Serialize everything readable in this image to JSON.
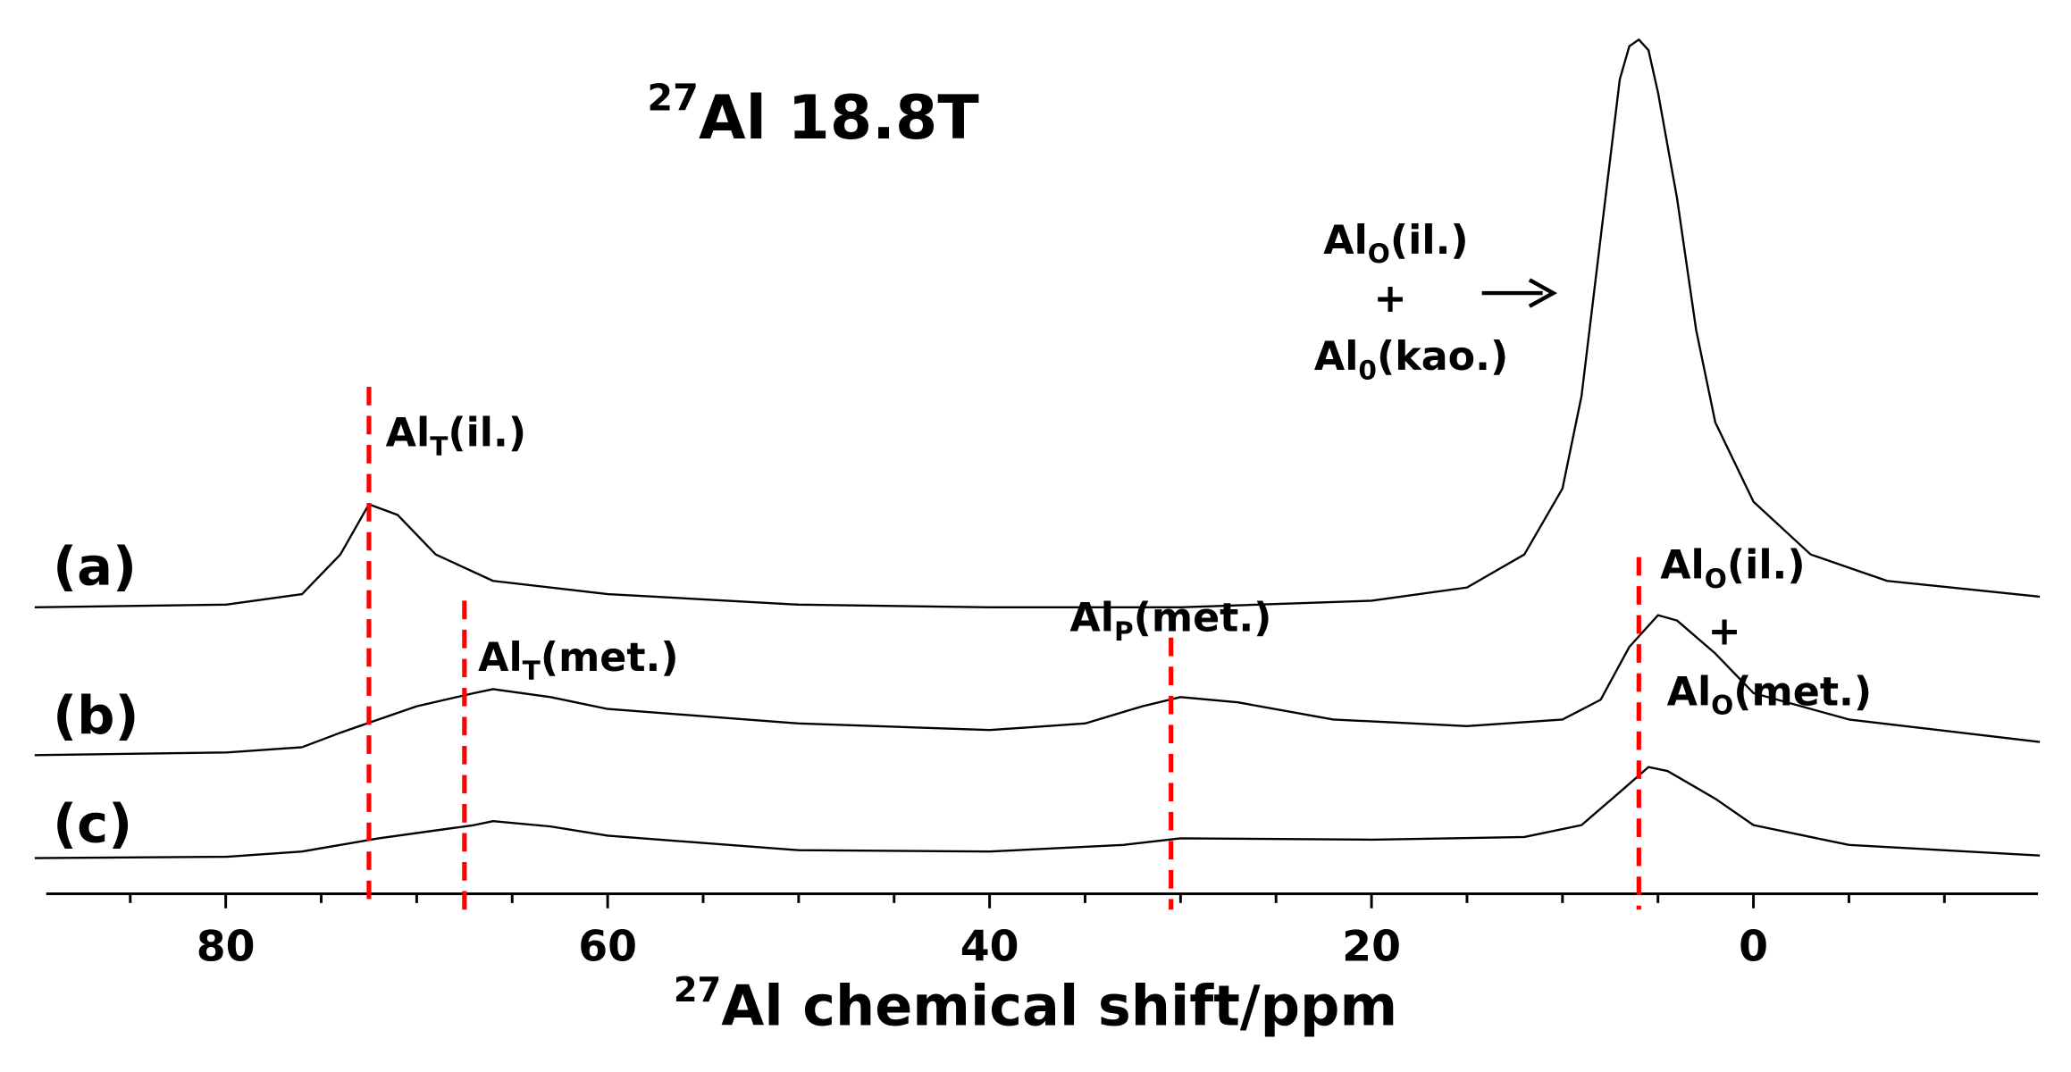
{
  "chart_data": {
    "type": "line",
    "title_sup": "27",
    "title": "Al  18.8T",
    "xlabel_sup": "27",
    "xlabel": "Al chemical shift/ppm",
    "xlim": [
      89.4,
      -14.9
    ],
    "xticks": [
      80,
      60,
      40,
      20,
      0
    ],
    "xminorticks": [
      85,
      75,
      70,
      65,
      55,
      50,
      45,
      35,
      30,
      25,
      15,
      10,
      5,
      -5,
      -10
    ],
    "ylim": [
      0,
      6.5
    ],
    "series": [
      {
        "name": "(a)",
        "color": "#000000",
        "x": [
          90,
          80,
          76,
          74,
          72.5,
          71,
          69,
          66,
          60,
          50,
          40,
          30,
          20,
          15,
          12,
          10,
          9,
          8,
          7,
          6.5,
          6,
          5.5,
          5,
          4,
          3,
          2,
          0,
          -3,
          -7,
          -15
        ],
        "values": [
          2.17,
          2.19,
          2.27,
          2.57,
          2.95,
          2.87,
          2.57,
          2.37,
          2.27,
          2.19,
          2.17,
          2.17,
          2.22,
          2.32,
          2.57,
          3.07,
          3.77,
          4.97,
          6.17,
          6.42,
          6.47,
          6.39,
          6.07,
          5.27,
          4.27,
          3.57,
          2.97,
          2.57,
          2.37,
          2.25
        ]
      },
      {
        "name": "(b)",
        "color": "#000000",
        "x": [
          90,
          80,
          76,
          74,
          72,
          70,
          67,
          66,
          63,
          60,
          50,
          40,
          35,
          32,
          30,
          27,
          22,
          15,
          10,
          8,
          6.5,
          5,
          4,
          2,
          0,
          -5,
          -15
        ],
        "values": [
          1.05,
          1.07,
          1.11,
          1.22,
          1.32,
          1.42,
          1.52,
          1.55,
          1.49,
          1.4,
          1.29,
          1.24,
          1.29,
          1.42,
          1.49,
          1.45,
          1.32,
          1.27,
          1.32,
          1.47,
          1.87,
          2.11,
          2.07,
          1.82,
          1.52,
          1.32,
          1.15
        ]
      },
      {
        "name": "(c)",
        "color": "#000000",
        "x": [
          90,
          80,
          76,
          72,
          67,
          66,
          63,
          60,
          50,
          40,
          33,
          30,
          20,
          12,
          9,
          7,
          5.5,
          4.5,
          2,
          0,
          -5,
          -15
        ],
        "values": [
          0.27,
          0.28,
          0.32,
          0.42,
          0.52,
          0.55,
          0.51,
          0.44,
          0.33,
          0.32,
          0.37,
          0.42,
          0.41,
          0.43,
          0.52,
          0.77,
          0.96,
          0.93,
          0.72,
          0.52,
          0.37,
          0.29
        ]
      }
    ],
    "reference_lines": [
      72.5,
      67.5,
      30.5,
      6
    ],
    "reference_color": "#ff0000",
    "annotations": [
      {
        "main": "Al",
        "sub": "O",
        "tail": "(il.)"
      },
      {
        "main": "+"
      },
      {
        "main": "Al",
        "sub": "0",
        "tail": "(kao.)"
      },
      {
        "main": "Al",
        "sub": "T",
        "tail": "(il.)"
      },
      {
        "main": "Al",
        "sub": "T",
        "tail": "(met.)"
      },
      {
        "main": "Al",
        "sub": "P",
        "tail": "(met.)"
      },
      {
        "main": "Al",
        "sub": "O",
        "tail": "(il.)"
      },
      {
        "main": "+"
      },
      {
        "main": "Al",
        "sub": "O",
        "tail": "(met.)"
      }
    ]
  }
}
